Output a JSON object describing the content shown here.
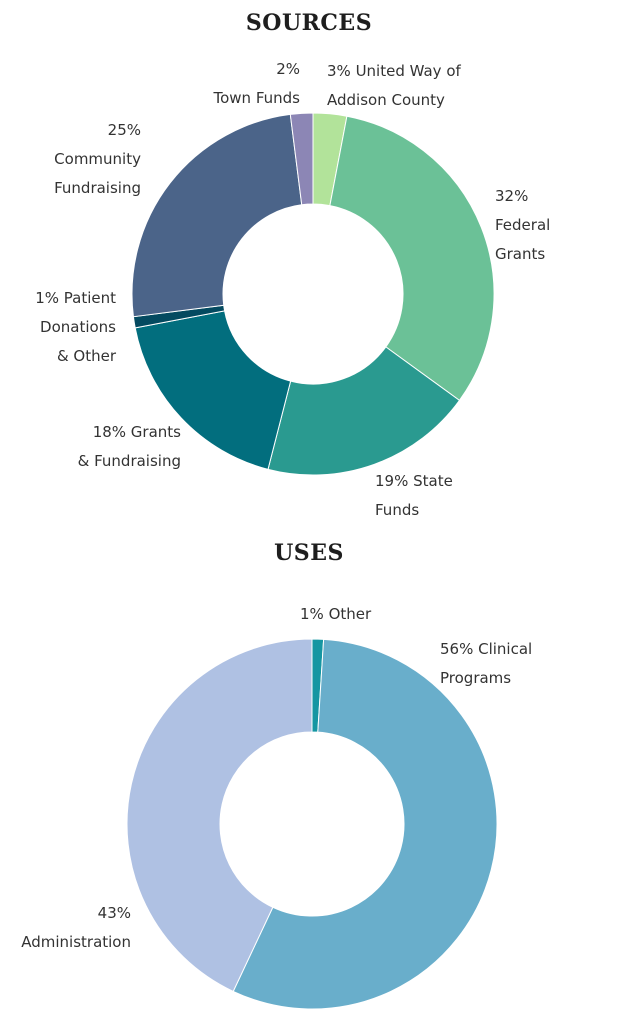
{
  "chart_data": [
    {
      "type": "pie",
      "title": "SOURCES",
      "donut": true,
      "categories": [
        "United Way of Addison County",
        "Federal Grants",
        "State Funds",
        "Grants & Fundraising",
        "Patient Donations & Other",
        "Community Fundraising",
        "Town Funds"
      ],
      "values": [
        3,
        32,
        19,
        18,
        1,
        25,
        2
      ],
      "colors": [
        "#b2e39a",
        "#6bc197",
        "#2a9a90",
        "#026e7e",
        "#044a60",
        "#4b6489",
        "#8c86b5"
      ],
      "labels": [
        "3% United Way of\nAddison County",
        "32%\nFederal\nGrants",
        "19% State\nFunds",
        "18% Grants\n& Fundraising",
        "1% Patient\nDonations\n& Other",
        "25%\nCommunity\nFundraising",
        "2%\nTown Funds"
      ]
    },
    {
      "type": "pie",
      "title": "USES",
      "donut": true,
      "categories": [
        "Other",
        "Clinical Programs",
        "Administration"
      ],
      "values": [
        1,
        56,
        43
      ],
      "colors": [
        "#1596a2",
        "#69aecb",
        "#afc1e3"
      ],
      "labels": [
        "1% Other",
        "56% Clinical\nPrograms",
        "43%\nAdministration"
      ]
    }
  ]
}
